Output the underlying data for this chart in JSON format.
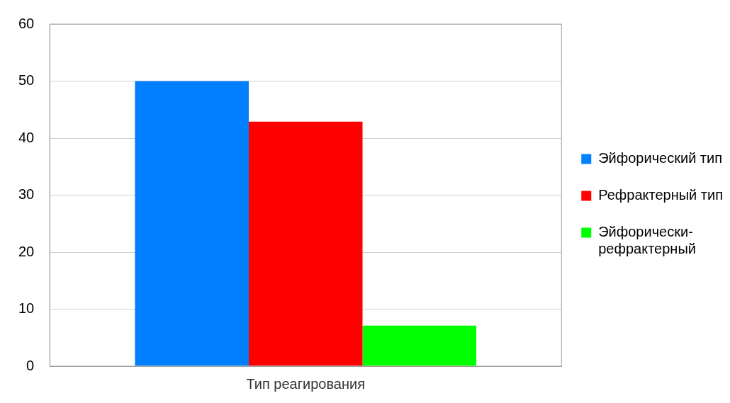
{
  "chart_data": {
    "type": "bar",
    "categories": [
      "Тип реагирования"
    ],
    "series": [
      {
        "name": "Эйфорический тип",
        "color": "#0080ff",
        "values": [
          50
        ]
      },
      {
        "name": "Рефрактерный тип",
        "color": "#ff0000",
        "values": [
          42.9
        ]
      },
      {
        "name": "Эйфорически-рефрактерный",
        "color": "#00ff00",
        "values": [
          7.1
        ]
      }
    ],
    "ylim": [
      0,
      60
    ],
    "yticks": [
      0,
      10,
      20,
      30,
      40,
      50,
      60
    ],
    "grid": "y",
    "legend": "right"
  }
}
